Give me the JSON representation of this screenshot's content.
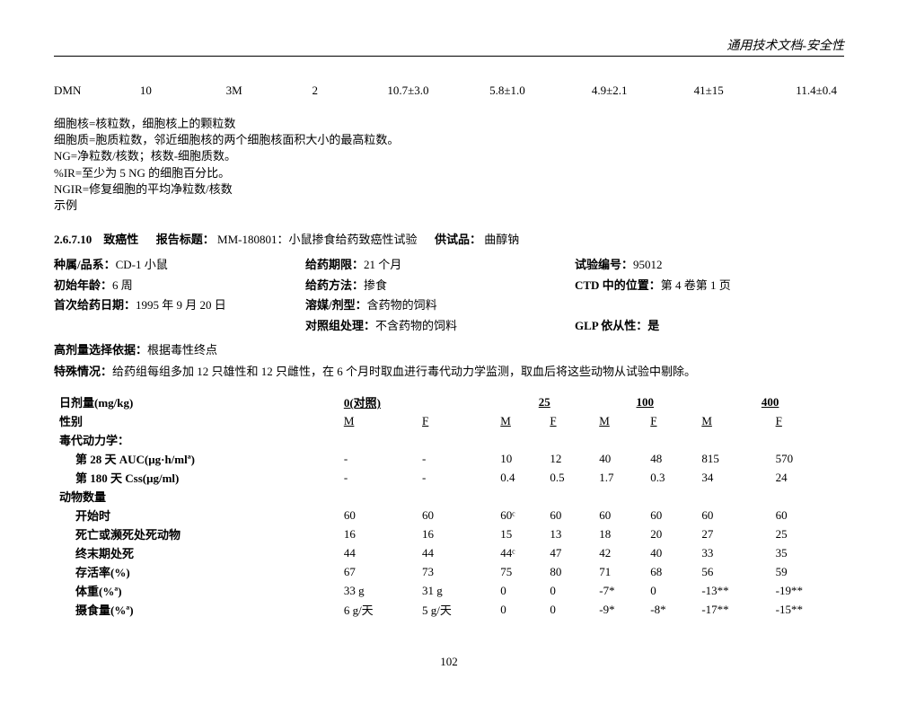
{
  "header": "通用技术文档-安全性",
  "dmn": {
    "label": "DMN",
    "c1": "10",
    "c2": "3M",
    "c3": "2",
    "c4": "10.7±3.0",
    "c5": "5.8±1.0",
    "c6": "4.9±2.1",
    "c7": "41±15",
    "c8": "11.4±0.4"
  },
  "notes": [
    "细胞核=核粒数，细胞核上的颗粒数",
    "细胞质=胞质粒数，邻近细胞核的两个细胞核面积大小的最高粒数。",
    "NG=净粒数/核数；核数-细胞质数。",
    "%IR=至少为 5 NG 的细胞百分比。",
    "NGIR=修复细胞的平均净粒数/核数",
    "示例"
  ],
  "section": {
    "num": "2.6.7.10",
    "name": "致癌性",
    "reportLabel": "报告标题：",
    "reportVal": "MM-180801：小鼠掺食给药致癌性试验",
    "testLabel": "供试品：",
    "testVal": "曲醇钠"
  },
  "info": {
    "speciesL": "种属/品系：",
    "speciesV": "CD-1 小鼠",
    "durationL": "给药期限：",
    "durationV": "21 个月",
    "studyNoL": "试验编号：",
    "studyNoV": "95012",
    "ageL": "初始年龄：",
    "ageV": "6 周",
    "routeL": "给药方法：",
    "routeV": "掺食",
    "ctdL": "CTD 中的位置：",
    "ctdV": "第 4 卷第 1 页",
    "startL": "首次给药日期：",
    "startV": "1995 年 9 月 20 日",
    "vehicleL": "溶媒/剂型：",
    "vehicleV": "含药物的饲料",
    "controlL": "对照组处理：",
    "controlV": "不含药物的饲料",
    "glpL": "GLP 依从性：",
    "glpV": "是"
  },
  "hdoseL": "高剂量选择依据：",
  "hdoseV": "根据毒性终点",
  "specialL": "特殊情况：",
  "specialV": "给药组每组多加 12 只雄性和 12 只雌性，在 6 个月时取血进行毒代动力学监测，取血后将这些动物从试验中剔除。",
  "table": {
    "doseLabel": "日剂量(mg/kg)",
    "doses": [
      "0(对照)",
      "25",
      "100",
      "400"
    ],
    "sexLabel": "性别",
    "sexes": [
      "M",
      "F",
      "M",
      "F",
      "M",
      "F",
      "M",
      "F"
    ],
    "tkLabel": "毒代动力学：",
    "aucLabel": "第 28 天 AUC(μg·h/mlª)",
    "auc": [
      "-",
      "-",
      "10",
      "12",
      "40",
      "48",
      "815",
      "570"
    ],
    "cssLabel": "第 180 天 Css(μg/ml)",
    "css": [
      "-",
      "-",
      "0.4",
      "0.5",
      "1.7",
      "0.3",
      "34",
      "24"
    ],
    "animalLabel": "动物数量",
    "startLabel": "开始时",
    "start": [
      "60",
      "60",
      "60ᶜ",
      "60",
      "60",
      "60",
      "60",
      "60"
    ],
    "deathLabel": "死亡或濒死处死动物",
    "death": [
      "16",
      "16",
      "15",
      "13",
      "18",
      "20",
      "27",
      "25"
    ],
    "termLabel": "终末期处死",
    "term": [
      "44",
      "44",
      "44ᶜ",
      "47",
      "42",
      "40",
      "33",
      "35"
    ],
    "survLabel": "存活率(%)",
    "surv": [
      "67",
      "73",
      "75",
      "80",
      "71",
      "68",
      "56",
      "59"
    ],
    "bwLabel": "体重(%ª)",
    "bw": [
      "33 g",
      "31 g",
      "0",
      "0",
      "-7*",
      "0",
      "-13**",
      "-19**"
    ],
    "fcLabel": "摄食量(%ª)",
    "fc": [
      "6 g/天",
      "5 g/天",
      "0",
      "0",
      "-9*",
      "-8*",
      "-17**",
      "-15**"
    ]
  },
  "pageNum": "102"
}
